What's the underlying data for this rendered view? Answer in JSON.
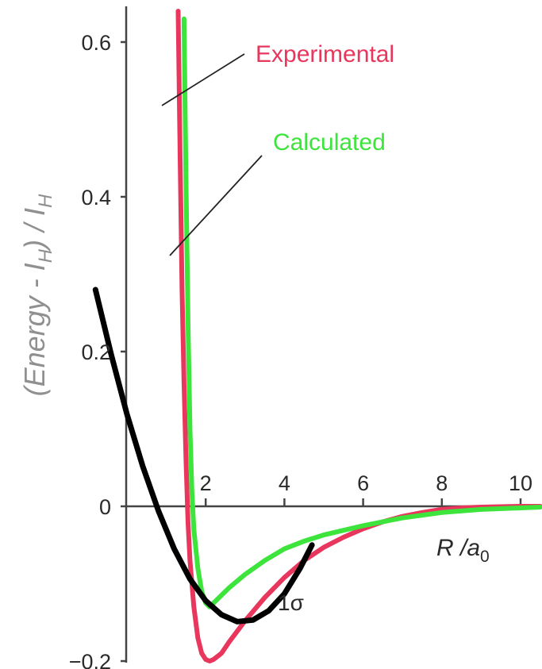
{
  "chart_data": {
    "type": "line",
    "ylabel": "(Energy - I_H) / I_H",
    "xlabel": "R / a0",
    "x_ticks": [
      2,
      4,
      6,
      8,
      10
    ],
    "x_tick_labels": [
      "2",
      "4",
      "6",
      "8",
      "10"
    ],
    "y_ticks": [
      0.6,
      0.4,
      0.2,
      0,
      -0.2
    ],
    "y_tick_labels": [
      "0.6",
      "0.4",
      "0.2",
      "0",
      "−0.2"
    ],
    "xlim": [
      -2.6,
      10.5
    ],
    "ylim": [
      -0.22,
      0.65
    ],
    "grid": false,
    "annotation": "1σ",
    "series": [
      {
        "name": "Experimental",
        "color": "#e8365c",
        "x": [
          1.3,
          1.35,
          1.4,
          1.45,
          1.5,
          1.55,
          1.6,
          1.7,
          1.8,
          1.9,
          2.0,
          2.1,
          2.2,
          2.4,
          2.6,
          3.0,
          3.5,
          4.0,
          4.5,
          5.0,
          5.5,
          6.0,
          6.5,
          7.0,
          7.5,
          8.0,
          8.5,
          9.0,
          10.0,
          10.5
        ],
        "y": [
          0.64,
          0.45,
          0.28,
          0.16,
          0.06,
          -0.02,
          -0.07,
          -0.13,
          -0.17,
          -0.19,
          -0.198,
          -0.2,
          -0.198,
          -0.19,
          -0.175,
          -0.148,
          -0.118,
          -0.092,
          -0.07,
          -0.053,
          -0.04,
          -0.029,
          -0.02,
          -0.013,
          -0.008,
          -0.004,
          -0.002,
          -0.001,
          0.0,
          0.0
        ]
      },
      {
        "name": "Calculated",
        "color": "#3ce43c",
        "x": [
          1.45,
          1.5,
          1.55,
          1.6,
          1.65,
          1.7,
          1.8,
          1.9,
          2.0,
          2.1,
          2.2,
          2.4,
          2.6,
          3.0,
          3.5,
          4.0,
          4.5,
          5.0,
          6.0,
          7.0,
          8.0,
          9.0,
          10.0,
          10.5
        ],
        "y": [
          0.63,
          0.42,
          0.24,
          0.1,
          0.02,
          -0.03,
          -0.08,
          -0.11,
          -0.125,
          -0.13,
          -0.125,
          -0.115,
          -0.105,
          -0.088,
          -0.07,
          -0.055,
          -0.045,
          -0.037,
          -0.025,
          -0.015,
          -0.008,
          -0.004,
          -0.002,
          -0.001
        ]
      },
      {
        "name": "",
        "color": "#000000",
        "x": [
          -0.8,
          -0.4,
          0.0,
          0.4,
          0.8,
          1.2,
          1.6,
          2.0,
          2.4,
          2.8,
          3.2,
          3.6,
          4.0,
          4.4,
          4.7
        ],
        "y": [
          0.28,
          0.196,
          0.119,
          0.052,
          -0.006,
          -0.055,
          -0.094,
          -0.122,
          -0.14,
          -0.149,
          -0.147,
          -0.135,
          -0.113,
          -0.08,
          -0.05
        ]
      }
    ]
  }
}
